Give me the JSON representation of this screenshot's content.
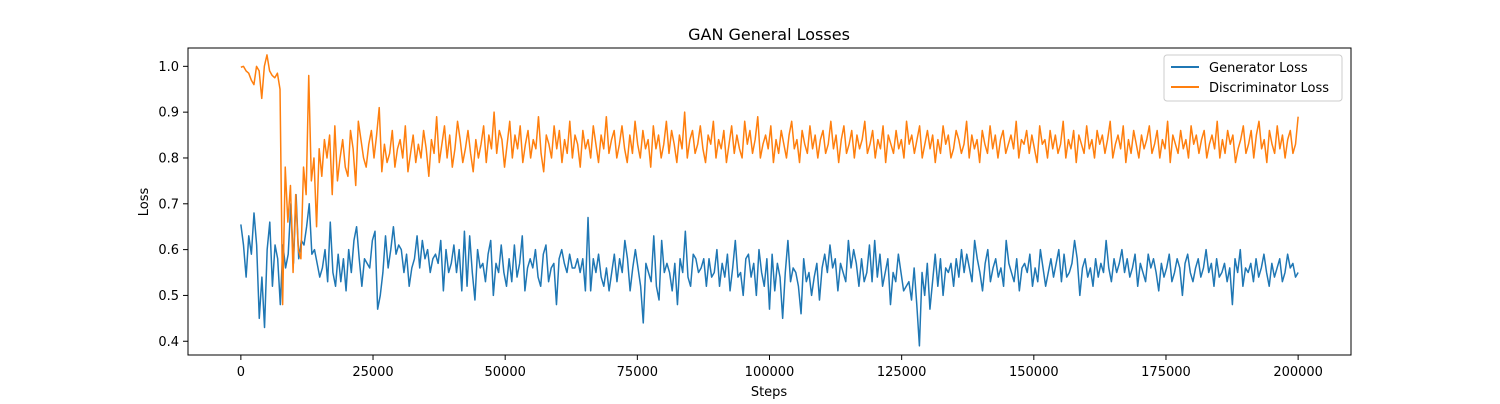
{
  "chart_data": {
    "type": "line",
    "title": "GAN General Losses",
    "xlabel": "Steps",
    "ylabel": "Loss",
    "xlim": [
      -10000,
      210000
    ],
    "ylim": [
      0.37,
      1.04
    ],
    "xticks": [
      0,
      25000,
      50000,
      75000,
      100000,
      125000,
      150000,
      175000,
      200000
    ],
    "yticks": [
      0.4,
      0.5,
      0.6,
      0.7,
      0.8,
      0.9,
      1.0
    ],
    "xtick_labels": [
      "0",
      "25000",
      "50000",
      "75000",
      "100000",
      "125000",
      "150000",
      "175000",
      "200000"
    ],
    "ytick_labels": [
      "0.4",
      "0.5",
      "0.6",
      "0.7",
      "0.8",
      "0.9",
      "1.0"
    ],
    "grid": false,
    "legend_position": "top-right",
    "x_start": 0,
    "x_end": 200000,
    "series": [
      {
        "name": "Generator Loss",
        "color": "#1f77b4",
        "values": [
          0.655,
          0.61,
          0.54,
          0.63,
          0.59,
          0.68,
          0.61,
          0.45,
          0.54,
          0.43,
          0.6,
          0.66,
          0.52,
          0.61,
          0.58,
          0.48,
          0.61,
          0.56,
          0.59,
          0.7,
          0.57,
          0.72,
          0.58,
          0.62,
          0.61,
          0.65,
          0.7,
          0.59,
          0.6,
          0.57,
          0.54,
          0.56,
          0.6,
          0.53,
          0.66,
          0.55,
          0.52,
          0.59,
          0.53,
          0.58,
          0.51,
          0.6,
          0.55,
          0.62,
          0.65,
          0.58,
          0.52,
          0.58,
          0.57,
          0.56,
          0.62,
          0.64,
          0.47,
          0.5,
          0.55,
          0.63,
          0.56,
          0.6,
          0.65,
          0.59,
          0.61,
          0.6,
          0.55,
          0.59,
          0.52,
          0.56,
          0.58,
          0.63,
          0.56,
          0.62,
          0.58,
          0.6,
          0.55,
          0.58,
          0.59,
          0.57,
          0.62,
          0.51,
          0.6,
          0.55,
          0.57,
          0.61,
          0.55,
          0.6,
          0.51,
          0.64,
          0.52,
          0.63,
          0.55,
          0.49,
          0.6,
          0.56,
          0.57,
          0.53,
          0.59,
          0.62,
          0.5,
          0.57,
          0.55,
          0.61,
          0.55,
          0.52,
          0.58,
          0.53,
          0.61,
          0.54,
          0.57,
          0.63,
          0.51,
          0.56,
          0.58,
          0.56,
          0.6,
          0.54,
          0.52,
          0.59,
          0.61,
          0.53,
          0.56,
          0.57,
          0.48,
          0.58,
          0.6,
          0.57,
          0.55,
          0.59,
          0.56,
          0.56,
          0.58,
          0.55,
          0.58,
          0.51,
          0.67,
          0.51,
          0.58,
          0.55,
          0.59,
          0.54,
          0.52,
          0.56,
          0.51,
          0.55,
          0.59,
          0.53,
          0.58,
          0.55,
          0.62,
          0.58,
          0.51,
          0.56,
          0.6,
          0.56,
          0.52,
          0.44,
          0.57,
          0.55,
          0.53,
          0.63,
          0.52,
          0.49,
          0.62,
          0.55,
          0.57,
          0.55,
          0.51,
          0.57,
          0.48,
          0.58,
          0.55,
          0.64,
          0.54,
          0.52,
          0.59,
          0.58,
          0.55,
          0.56,
          0.58,
          0.52,
          0.58,
          0.54,
          0.55,
          0.6,
          0.52,
          0.57,
          0.54,
          0.59,
          0.51,
          0.56,
          0.62,
          0.54,
          0.55,
          0.5,
          0.58,
          0.59,
          0.54,
          0.57,
          0.5,
          0.6,
          0.55,
          0.52,
          0.58,
          0.47,
          0.59,
          0.51,
          0.57,
          0.54,
          0.45,
          0.55,
          0.62,
          0.53,
          0.56,
          0.55,
          0.52,
          0.46,
          0.58,
          0.53,
          0.55,
          0.5,
          0.54,
          0.57,
          0.49,
          0.56,
          0.59,
          0.55,
          0.61,
          0.56,
          0.58,
          0.51,
          0.57,
          0.55,
          0.53,
          0.62,
          0.56,
          0.6,
          0.57,
          0.52,
          0.58,
          0.53,
          0.55,
          0.61,
          0.53,
          0.62,
          0.54,
          0.59,
          0.52,
          0.55,
          0.58,
          0.48,
          0.55,
          0.53,
          0.59,
          0.55,
          0.51,
          0.52,
          0.53,
          0.49,
          0.56,
          0.48,
          0.39,
          0.55,
          0.5,
          0.57,
          0.47,
          0.53,
          0.59,
          0.52,
          0.58,
          0.5,
          0.56,
          0.55,
          0.57,
          0.52,
          0.58,
          0.54,
          0.6,
          0.55,
          0.59,
          0.56,
          0.53,
          0.62,
          0.58,
          0.55,
          0.51,
          0.57,
          0.6,
          0.53,
          0.56,
          0.58,
          0.54,
          0.56,
          0.52,
          0.62,
          0.57,
          0.55,
          0.53,
          0.58,
          0.51,
          0.56,
          0.57,
          0.55,
          0.59,
          0.52,
          0.56,
          0.53,
          0.6,
          0.56,
          0.52,
          0.55,
          0.58,
          0.54,
          0.57,
          0.6,
          0.53,
          0.59,
          0.54,
          0.55,
          0.57,
          0.62,
          0.58,
          0.5,
          0.56,
          0.58,
          0.54,
          0.56,
          0.52,
          0.58,
          0.54,
          0.57,
          0.55,
          0.62,
          0.56,
          0.53,
          0.58,
          0.55,
          0.57,
          0.6,
          0.55,
          0.58,
          0.54,
          0.56,
          0.59,
          0.52,
          0.57,
          0.55,
          0.53,
          0.59,
          0.56,
          0.58,
          0.55,
          0.51,
          0.57,
          0.54,
          0.56,
          0.59,
          0.53,
          0.55,
          0.58,
          0.56,
          0.5,
          0.57,
          0.59,
          0.55,
          0.53,
          0.56,
          0.58,
          0.54,
          0.56,
          0.6,
          0.55,
          0.57,
          0.52,
          0.58,
          0.54,
          0.55,
          0.57,
          0.53,
          0.56,
          0.48,
          0.58,
          0.55,
          0.6,
          0.52,
          0.56,
          0.55,
          0.57,
          0.53,
          0.58,
          0.54,
          0.56,
          0.59,
          0.55,
          0.52,
          0.57,
          0.54,
          0.56,
          0.58,
          0.53,
          0.55,
          0.59,
          0.56,
          0.57,
          0.54,
          0.55
        ]
      },
      {
        "name": "Discriminator Loss",
        "color": "#ff7f0e",
        "values": [
          0.998,
          1.0,
          0.99,
          0.985,
          0.97,
          0.96,
          1.0,
          0.99,
          0.93,
          1.0,
          1.025,
          0.99,
          0.98,
          0.975,
          0.985,
          0.95,
          0.48,
          0.78,
          0.66,
          0.74,
          0.55,
          0.72,
          0.6,
          0.58,
          0.78,
          0.72,
          0.98,
          0.75,
          0.8,
          0.65,
          0.82,
          0.76,
          0.84,
          0.8,
          0.85,
          0.72,
          0.87,
          0.75,
          0.8,
          0.84,
          0.78,
          0.76,
          0.86,
          0.82,
          0.74,
          0.88,
          0.84,
          0.8,
          0.78,
          0.83,
          0.86,
          0.8,
          0.85,
          0.91,
          0.77,
          0.83,
          0.79,
          0.81,
          0.86,
          0.78,
          0.82,
          0.84,
          0.8,
          0.87,
          0.77,
          0.81,
          0.85,
          0.79,
          0.83,
          0.8,
          0.86,
          0.82,
          0.76,
          0.84,
          0.81,
          0.89,
          0.79,
          0.83,
          0.87,
          0.8,
          0.85,
          0.78,
          0.82,
          0.88,
          0.84,
          0.79,
          0.82,
          0.86,
          0.81,
          0.77,
          0.84,
          0.8,
          0.83,
          0.87,
          0.79,
          0.85,
          0.82,
          0.9,
          0.81,
          0.86,
          0.84,
          0.78,
          0.83,
          0.88,
          0.8,
          0.85,
          0.82,
          0.87,
          0.79,
          0.83,
          0.86,
          0.8,
          0.84,
          0.82,
          0.89,
          0.81,
          0.77,
          0.85,
          0.83,
          0.8,
          0.87,
          0.82,
          0.86,
          0.79,
          0.84,
          0.81,
          0.88,
          0.8,
          0.85,
          0.83,
          0.78,
          0.86,
          0.82,
          0.84,
          0.8,
          0.87,
          0.83,
          0.79,
          0.85,
          0.82,
          0.89,
          0.81,
          0.84,
          0.86,
          0.8,
          0.83,
          0.87,
          0.82,
          0.79,
          0.85,
          0.81,
          0.88,
          0.83,
          0.8,
          0.86,
          0.82,
          0.84,
          0.78,
          0.87,
          0.82,
          0.85,
          0.8,
          0.83,
          0.88,
          0.81,
          0.86,
          0.83,
          0.79,
          0.85,
          0.82,
          0.9,
          0.8,
          0.84,
          0.86,
          0.81,
          0.83,
          0.87,
          0.82,
          0.79,
          0.85,
          0.83,
          0.88,
          0.8,
          0.84,
          0.82,
          0.86,
          0.79,
          0.83,
          0.87,
          0.81,
          0.85,
          0.82,
          0.8,
          0.88,
          0.83,
          0.86,
          0.81,
          0.84,
          0.89,
          0.8,
          0.83,
          0.85,
          0.82,
          0.87,
          0.79,
          0.84,
          0.81,
          0.86,
          0.83,
          0.8,
          0.85,
          0.88,
          0.82,
          0.84,
          0.79,
          0.86,
          0.83,
          0.81,
          0.87,
          0.82,
          0.85,
          0.8,
          0.84,
          0.86,
          0.81,
          0.83,
          0.88,
          0.82,
          0.85,
          0.79,
          0.84,
          0.87,
          0.81,
          0.83,
          0.86,
          0.8,
          0.85,
          0.82,
          0.84,
          0.88,
          0.81,
          0.83,
          0.86,
          0.8,
          0.84,
          0.82,
          0.87,
          0.79,
          0.85,
          0.83,
          0.81,
          0.86,
          0.82,
          0.84,
          0.8,
          0.88,
          0.83,
          0.85,
          0.81,
          0.84,
          0.87,
          0.8,
          0.83,
          0.86,
          0.82,
          0.85,
          0.79,
          0.84,
          0.81,
          0.87,
          0.83,
          0.85,
          0.8,
          0.82,
          0.86,
          0.84,
          0.81,
          0.83,
          0.88,
          0.8,
          0.85,
          0.82,
          0.84,
          0.79,
          0.86,
          0.83,
          0.81,
          0.87,
          0.82,
          0.85,
          0.8,
          0.84,
          0.86,
          0.81,
          0.83,
          0.85,
          0.82,
          0.88,
          0.8,
          0.84,
          0.83,
          0.86,
          0.81,
          0.85,
          0.82,
          0.79,
          0.87,
          0.83,
          0.84,
          0.8,
          0.86,
          0.82,
          0.85,
          0.81,
          0.83,
          0.88,
          0.8,
          0.84,
          0.82,
          0.86,
          0.79,
          0.85,
          0.83,
          0.81,
          0.87,
          0.82,
          0.84,
          0.8,
          0.86,
          0.83,
          0.85,
          0.81,
          0.84,
          0.88,
          0.8,
          0.83,
          0.85,
          0.82,
          0.87,
          0.79,
          0.84,
          0.81,
          0.86,
          0.83,
          0.8,
          0.85,
          0.82,
          0.84,
          0.87,
          0.81,
          0.83,
          0.86,
          0.8,
          0.84,
          0.82,
          0.88,
          0.79,
          0.85,
          0.83,
          0.81,
          0.86,
          0.82,
          0.84,
          0.8,
          0.87,
          0.83,
          0.85,
          0.81,
          0.84,
          0.86,
          0.8,
          0.83,
          0.85,
          0.82,
          0.88,
          0.8,
          0.84,
          0.81,
          0.86,
          0.83,
          0.85,
          0.79,
          0.82,
          0.84,
          0.87,
          0.81,
          0.83,
          0.86,
          0.8,
          0.85,
          0.88,
          0.82,
          0.84,
          0.79,
          0.86,
          0.83,
          0.81,
          0.87,
          0.82,
          0.85,
          0.8,
          0.84,
          0.86,
          0.81,
          0.83,
          0.89
        ]
      }
    ]
  }
}
